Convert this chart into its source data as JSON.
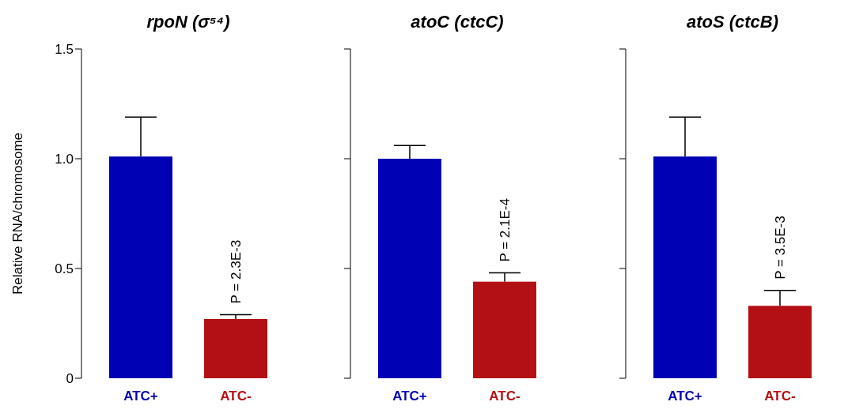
{
  "chart_data": [
    {
      "type": "bar",
      "title": "rpoN (σ⁵⁴)",
      "ylabel": "Relative RNA/chromosome",
      "categories": [
        "ATC+",
        "ATC-"
      ],
      "values": [
        1.01,
        0.27
      ],
      "colors": [
        "#0000b4",
        "#b31015"
      ],
      "errors": [
        [
          1.01,
          1.19
        ],
        [
          0.27,
          0.29
        ]
      ],
      "ylim": [
        0,
        1.5
      ],
      "yticks": [
        0,
        0.5,
        {
          "value": 1,
          "label": "1.0"
        },
        1.5
      ],
      "grid": false,
      "annotations": [
        "P = 2.3E-3"
      ]
    },
    {
      "type": "bar",
      "title": "atoC (ctcC)",
      "categories": [
        "ATC+",
        "ATC-"
      ],
      "values": [
        1.0,
        0.44
      ],
      "colors": [
        "#0000b4",
        "#b31015"
      ],
      "errors": [
        [
          1.0,
          1.06
        ],
        [
          0.44,
          0.48
        ]
      ],
      "ylim": [
        0,
        1.5
      ],
      "yticks": [
        0,
        0.5,
        1,
        1.5
      ],
      "tick_labels": "x",
      "grid": false,
      "annotations": [
        "P = 2.1E-4"
      ]
    },
    {
      "type": "bar",
      "title": "atoS (ctcB)",
      "categories": [
        "ATC+",
        "ATC-"
      ],
      "values": [
        1.01,
        0.33
      ],
      "colors": [
        "#0000b4",
        "#b31015"
      ],
      "errors": [
        [
          1.01,
          1.19
        ],
        [
          0.33,
          0.4
        ]
      ],
      "ylim": [
        0,
        1.5
      ],
      "yticks": [
        0,
        0.5,
        1,
        1.5
      ],
      "tick_labels": "x",
      "grid": false,
      "annotations": [
        "P = 3.5E-3"
      ]
    }
  ]
}
